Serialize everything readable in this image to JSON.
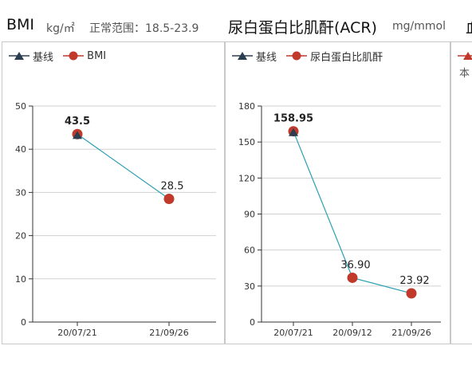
{
  "header": {
    "bmi_title": "BMI",
    "bmi_unit": "kg/㎡",
    "bmi_range": "正常范围：18.5-23.9",
    "acr_title": "尿白蛋白比肌酐(ACR)",
    "acr_unit": "mg/mmol",
    "third_title_partial": "血"
  },
  "colors": {
    "baseline": "#2b3e50",
    "data_point": "#c0392b",
    "line": "#2aa0b4"
  },
  "legend_icons": {
    "baseline": "triangle-icon",
    "data": "circle-icon"
  },
  "third_panel": {
    "legend_partial": "",
    "text_partial": "本"
  },
  "chart_data": [
    {
      "type": "line",
      "title": "BMI",
      "legend": [
        "基线",
        "BMI"
      ],
      "categories": [
        "20/07/21",
        "21/09/26"
      ],
      "series": [
        {
          "name": "基线",
          "values": [
            43.5,
            null
          ]
        },
        {
          "name": "BMI",
          "values": [
            43.5,
            28.5
          ]
        }
      ],
      "data_labels": [
        "43.5",
        "28.5"
      ],
      "first_label_bold": true,
      "ylim": [
        0,
        50
      ],
      "yticks": [
        0,
        10,
        20,
        30,
        40,
        50
      ],
      "grid": true,
      "legend_position": "top-left"
    },
    {
      "type": "line",
      "title": "尿白蛋白比肌酐(ACR)",
      "legend": [
        "基线",
        "尿白蛋白比肌酐"
      ],
      "categories": [
        "20/07/21",
        "20/09/12",
        "21/09/26"
      ],
      "series": [
        {
          "name": "基线",
          "values": [
            158.95,
            null,
            null
          ]
        },
        {
          "name": "尿白蛋白比肌酐",
          "values": [
            158.95,
            36.9,
            23.92
          ]
        }
      ],
      "data_labels": [
        "158.95",
        "36.90",
        "23.92"
      ],
      "first_label_bold": true,
      "ylim": [
        0,
        180
      ],
      "yticks": [
        0,
        30,
        60,
        90,
        120,
        150,
        180
      ],
      "grid": true,
      "legend_position": "top-left"
    }
  ]
}
